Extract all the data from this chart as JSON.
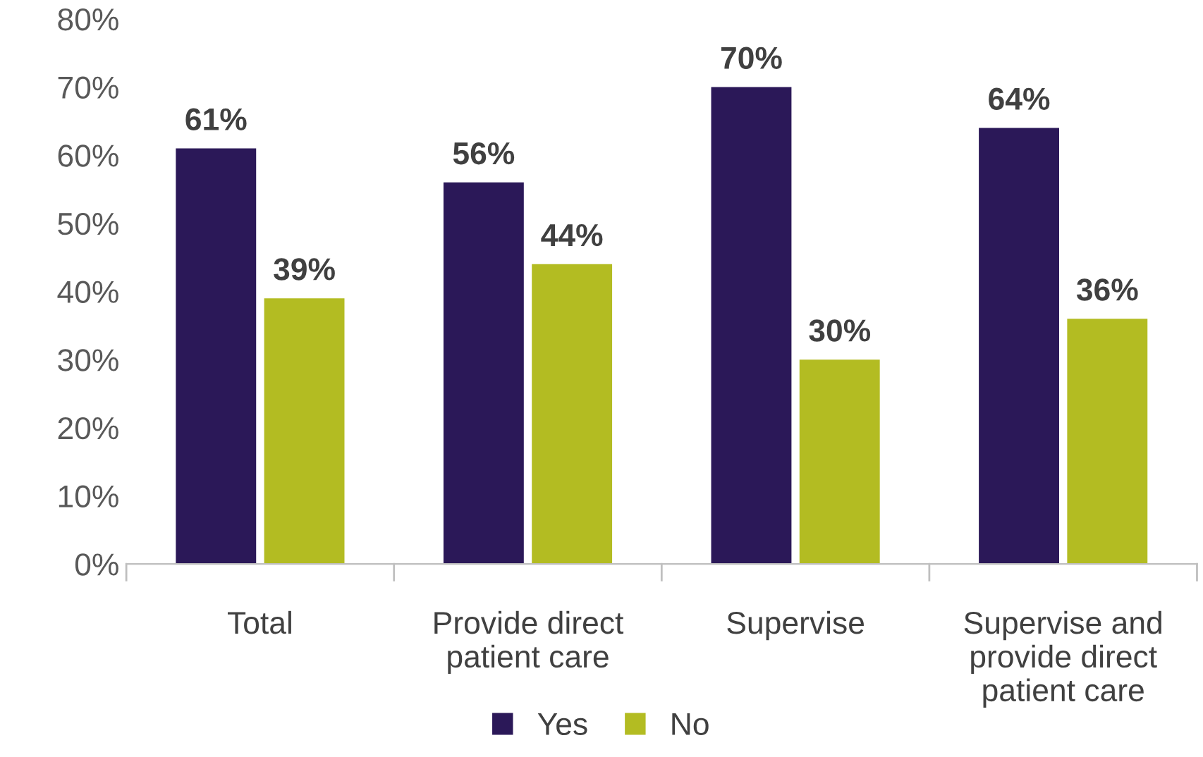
{
  "chart_data": {
    "type": "bar",
    "categories": [
      "Total",
      "Provide direct\npatient care",
      "Supervise",
      "Supervise and\nprovide direct\npatient care"
    ],
    "series": [
      {
        "name": "Yes",
        "color": "#2b1858",
        "values": [
          61,
          56,
          70,
          64
        ],
        "value_labels": [
          "61%",
          "56%",
          "70%",
          "64%"
        ]
      },
      {
        "name": "No",
        "color": "#b3bc22",
        "values": [
          39,
          44,
          30,
          36
        ],
        "value_labels": [
          "39%",
          "44%",
          "30%",
          "36%"
        ]
      }
    ],
    "ylim": [
      0,
      80
    ],
    "yticks": [
      {
        "value": 0,
        "label": "0%"
      },
      {
        "value": 10,
        "label": "10%"
      },
      {
        "value": 20,
        "label": "20%"
      },
      {
        "value": 30,
        "label": "30%"
      },
      {
        "value": 40,
        "label": "40%"
      },
      {
        "value": 50,
        "label": "50%"
      },
      {
        "value": 60,
        "label": "60%"
      },
      {
        "value": 70,
        "label": "70%"
      },
      {
        "value": 80,
        "label": "80%"
      }
    ],
    "grid": false,
    "legend": "bottom"
  }
}
